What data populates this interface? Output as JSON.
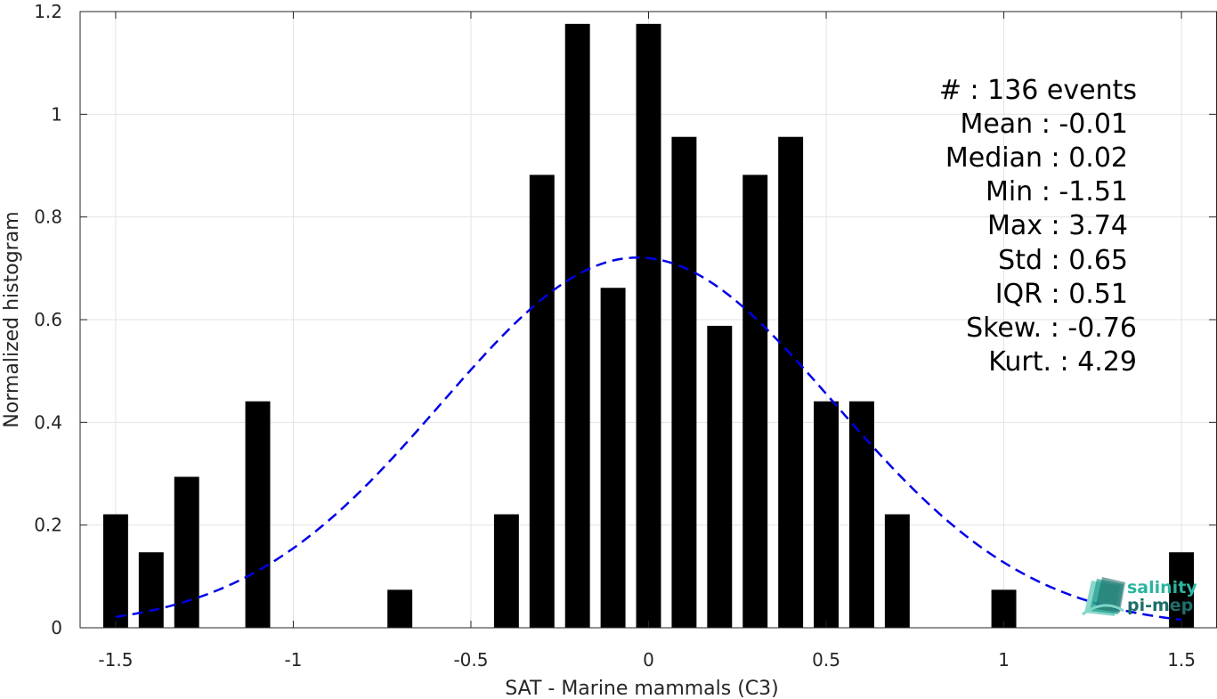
{
  "chart_data": {
    "type": "bar",
    "title": "",
    "xlabel": "SAT - Marine mammals (C3)",
    "ylabel": "Normalized histogram",
    "xlim": [
      -1.6,
      1.6
    ],
    "ylim": [
      0,
      1.2
    ],
    "xticks": [
      -1.5,
      -1,
      -0.5,
      0,
      0.5,
      1,
      1.5
    ],
    "xtick_labels": [
      "-1.5",
      "-1",
      "-0.5",
      "0",
      "0.5",
      "1",
      "1.5"
    ],
    "yticks": [
      0,
      0.2,
      0.4,
      0.6,
      0.8,
      1,
      1.2
    ],
    "ytick_labels": [
      "0",
      "0.2",
      "0.4",
      "0.6",
      "0.8",
      "1",
      "1.2"
    ],
    "grid": true,
    "bar_width": 0.07,
    "bar_color": "#000000",
    "bars": {
      "x": [
        -1.5,
        -1.4,
        -1.3,
        -1.1,
        -0.7,
        -0.4,
        -0.3,
        -0.2,
        -0.1,
        0.0,
        0.1,
        0.2,
        0.3,
        0.4,
        0.5,
        0.6,
        0.7,
        1.0,
        1.5
      ],
      "values": [
        0.221,
        0.147,
        0.294,
        0.441,
        0.074,
        0.221,
        0.882,
        1.176,
        0.662,
        1.176,
        0.956,
        0.588,
        0.882,
        0.956,
        0.441,
        0.441,
        0.221,
        0.074,
        0.147
      ]
    },
    "fit_curve": {
      "kind": "gaussian",
      "mean": -0.03,
      "std": 0.553,
      "peak": 0.721,
      "x_range": [
        -1.5,
        1.5
      ],
      "color": "#0000e6",
      "style": "dashed"
    },
    "annotations": [
      "#  : 136 events",
      "Mean : -0.01",
      "Median : 0.02",
      "Min : -1.51",
      "Max : 3.74",
      "Std : 0.65",
      "IQR : 0.51",
      "Skew. : -0.76",
      "Kurt. : 4.29"
    ]
  },
  "logo": {
    "line1": "salinity",
    "line2": "pi-mep",
    "color1": "#2bb5a0",
    "color2": "#1e6e6a"
  }
}
